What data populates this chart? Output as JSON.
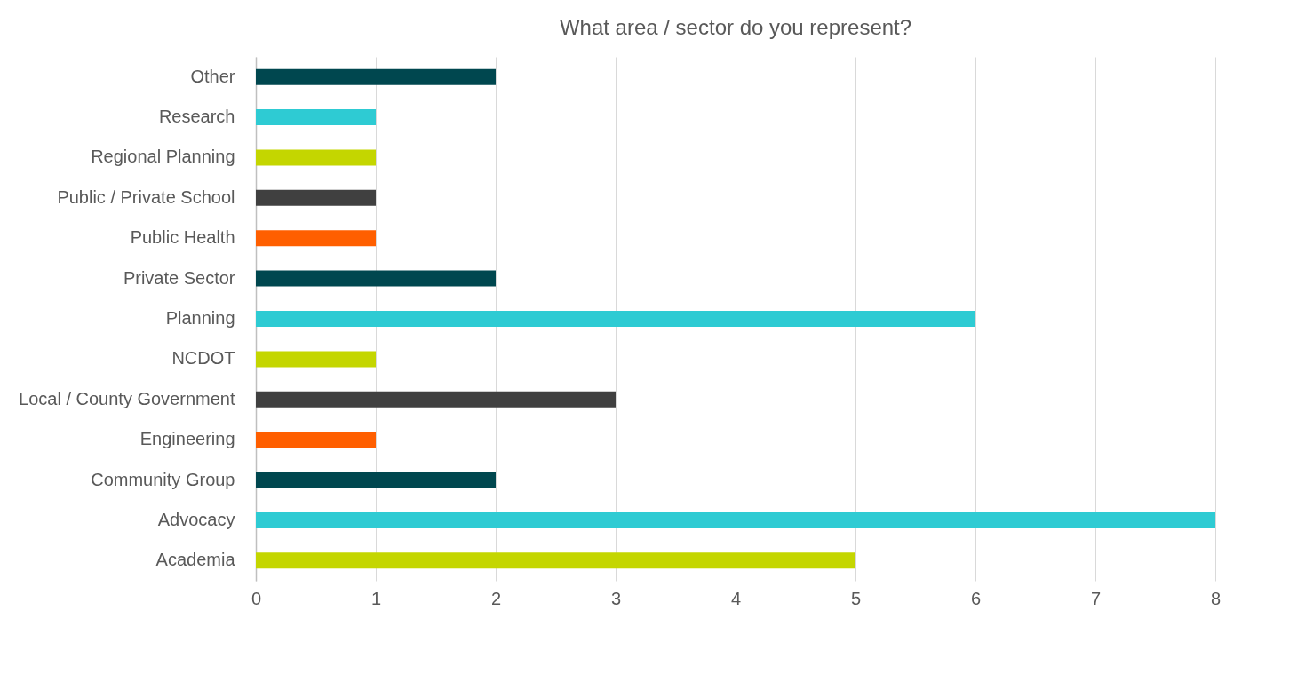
{
  "chart_data": {
    "type": "bar",
    "orientation": "horizontal",
    "title": "What area / sector do you represent?",
    "categories": [
      "Other",
      "Research",
      "Regional Planning",
      "Public / Private School",
      "Public Health",
      "Private Sector",
      "Planning",
      "NCDOT",
      "Local / County Government",
      "Engineering",
      "Community Group",
      "Advocacy",
      "Academia"
    ],
    "values": [
      2,
      1,
      1,
      1,
      1,
      2,
      6,
      1,
      3,
      1,
      2,
      8,
      5
    ],
    "colors": [
      "#00474f",
      "#2ecbd3",
      "#c4d600",
      "#404040",
      "#ff5f00",
      "#00474f",
      "#2ecbd3",
      "#c4d600",
      "#404040",
      "#ff5f00",
      "#00474f",
      "#2ecbd3",
      "#c4d600"
    ],
    "xlim": [
      0,
      8
    ],
    "xticks": [
      0,
      1,
      2,
      3,
      4,
      5,
      6,
      7,
      8
    ],
    "grid": "x"
  }
}
